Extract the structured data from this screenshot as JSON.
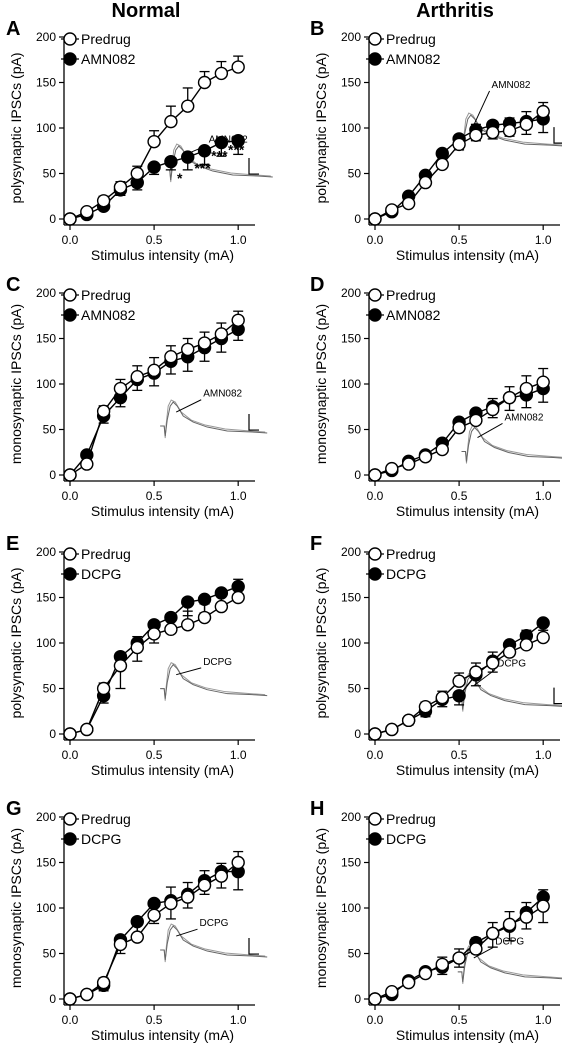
{
  "column_titles": [
    "Normal",
    "Arthritis"
  ],
  "chart_data": [
    {
      "panel": "A",
      "type": "line",
      "ylabel": "polysynaptic IPSCs (pA)",
      "xlabel": "Stimulus intensity (mA)",
      "xlim": [
        0,
        1.1
      ],
      "ylim": [
        0,
        200
      ],
      "xticks": [
        "0.0",
        "0.5",
        "1.0"
      ],
      "yticks": [
        "0",
        "50",
        "100",
        "150",
        "200"
      ],
      "x": [
        0,
        0.1,
        0.2,
        0.3,
        0.4,
        0.5,
        0.6,
        0.7,
        0.8,
        0.9,
        1.0
      ],
      "series": [
        {
          "name": "Predrug",
          "filled": false,
          "values": [
            0,
            8,
            20,
            35,
            50,
            85,
            107,
            124,
            150,
            160,
            167
          ],
          "err": [
            2,
            3,
            5,
            6,
            8,
            12,
            17,
            20,
            12,
            13,
            12
          ]
        },
        {
          "name": "AMN082",
          "filled": true,
          "values": [
            0,
            5,
            14,
            32,
            40,
            57,
            63,
            68,
            75,
            84,
            86
          ],
          "err": [
            2,
            3,
            4,
            6,
            8,
            8,
            9,
            14,
            15,
            15,
            15
          ]
        }
      ],
      "significance": [
        "*",
        "***",
        "***",
        "***"
      ],
      "annotation": "AMN082",
      "legend": "top-left"
    },
    {
      "panel": "B",
      "type": "line",
      "ylabel": "polysynaptic IPSCs (pA)",
      "xlabel": "Stimulus intensity (mA)",
      "xlim": [
        0,
        1.1
      ],
      "ylim": [
        0,
        200
      ],
      "xticks": [
        "0.0",
        "0.5",
        "1.0"
      ],
      "yticks": [
        "0",
        "50",
        "100",
        "150",
        "200"
      ],
      "x": [
        0,
        0.1,
        0.2,
        0.3,
        0.4,
        0.5,
        0.6,
        0.7,
        0.8,
        0.9,
        1.0
      ],
      "series": [
        {
          "name": "Predrug",
          "filled": false,
          "values": [
            0,
            10,
            17,
            40,
            60,
            82,
            92,
            95,
            97,
            104,
            118
          ],
          "err": [
            2,
            3,
            5,
            6,
            8,
            10,
            12,
            12,
            14,
            14,
            10
          ]
        },
        {
          "name": "AMN082",
          "filled": true,
          "values": [
            0,
            8,
            25,
            48,
            72,
            88,
            98,
            103,
            105,
            107,
            110
          ],
          "err": [
            2,
            3,
            5,
            8,
            10,
            12,
            12,
            15,
            14,
            14,
            15
          ]
        }
      ],
      "annotation": "AMN082",
      "legend": "top-left"
    },
    {
      "panel": "C",
      "type": "line",
      "ylabel": "monosynaptic IPSCs (pA)",
      "xlabel": "Stimulus intensity (mA)",
      "xlim": [
        0,
        1.1
      ],
      "ylim": [
        0,
        200
      ],
      "xticks": [
        "0.0",
        "0.5",
        "1.0"
      ],
      "yticks": [
        "0",
        "50",
        "100",
        "150",
        "200"
      ],
      "x": [
        0,
        0.1,
        0.2,
        0.3,
        0.4,
        0.5,
        0.6,
        0.7,
        0.8,
        0.9,
        1.0
      ],
      "series": [
        {
          "name": "Predrug",
          "filled": false,
          "values": [
            0,
            12,
            70,
            95,
            108,
            115,
            130,
            138,
            145,
            155,
            170
          ],
          "err": [
            2,
            3,
            6,
            10,
            12,
            14,
            12,
            12,
            12,
            12,
            10
          ]
        },
        {
          "name": "AMN082",
          "filled": true,
          "values": [
            0,
            22,
            65,
            85,
            105,
            112,
            125,
            130,
            140,
            150,
            160
          ],
          "err": [
            2,
            3,
            8,
            10,
            12,
            14,
            14,
            16,
            15,
            15,
            12
          ]
        }
      ],
      "annotation": "AMN082",
      "legend": "top-left"
    },
    {
      "panel": "D",
      "type": "line",
      "ylabel": "monosynaptic IPSCs (pA)",
      "xlabel": "Stimulus intensity (mA)",
      "xlim": [
        0,
        1.1
      ],
      "ylim": [
        0,
        200
      ],
      "xticks": [
        "0.0",
        "0.5",
        "1.0"
      ],
      "yticks": [
        "0",
        "50",
        "100",
        "150",
        "200"
      ],
      "x": [
        0,
        0.1,
        0.2,
        0.3,
        0.4,
        0.5,
        0.6,
        0.7,
        0.8,
        0.9,
        1.0
      ],
      "series": [
        {
          "name": "Predrug",
          "filled": false,
          "values": [
            0,
            7,
            12,
            20,
            28,
            52,
            60,
            72,
            85,
            95,
            102
          ],
          "err": [
            2,
            2,
            4,
            6,
            6,
            10,
            10,
            12,
            12,
            14,
            15
          ]
        },
        {
          "name": "AMN082",
          "filled": true,
          "values": [
            0,
            5,
            15,
            22,
            35,
            58,
            68,
            75,
            85,
            88,
            95
          ],
          "err": [
            2,
            3,
            5,
            6,
            8,
            10,
            12,
            12,
            14,
            14,
            15
          ]
        }
      ],
      "annotation": "AMN082",
      "legend": "top-left"
    },
    {
      "panel": "E",
      "type": "line",
      "ylabel": "polysynaptic IPSCs (pA)",
      "xlabel": "Stimulus intensity (mA)",
      "xlim": [
        0,
        1.1
      ],
      "ylim": [
        0,
        200
      ],
      "xticks": [
        "0.0",
        "0.5",
        "1.0"
      ],
      "yticks": [
        "0",
        "50",
        "100",
        "150",
        "200"
      ],
      "x": [
        0,
        0.1,
        0.2,
        0.3,
        0.4,
        0.5,
        0.6,
        0.7,
        0.8,
        0.9,
        1.0
      ],
      "series": [
        {
          "name": "Predrug",
          "filled": false,
          "values": [
            0,
            5,
            50,
            75,
            95,
            110,
            115,
            120,
            128,
            140,
            150
          ],
          "err": [
            2,
            3,
            6,
            10,
            12,
            14,
            10,
            15,
            15,
            18,
            20
          ]
        },
        {
          "name": "DCPG",
          "filled": true,
          "values": [
            0,
            5,
            42,
            85,
            100,
            120,
            128,
            145,
            148,
            155,
            162
          ],
          "err": [
            2,
            3,
            8,
            35,
            20,
            20,
            15,
            15,
            15,
            12,
            10
          ]
        }
      ],
      "annotation": "DCPG",
      "legend": "top-left"
    },
    {
      "panel": "F",
      "type": "line",
      "ylabel": "polysynaptic IPSCs (pA)",
      "xlabel": "Stimulus intensity (mA)",
      "xlim": [
        0,
        1.1
      ],
      "ylim": [
        0,
        200
      ],
      "xticks": [
        "0.0",
        "0.5",
        "1.0"
      ],
      "yticks": [
        "0",
        "50",
        "100",
        "150",
        "200"
      ],
      "x": [
        0,
        0.1,
        0.2,
        0.3,
        0.4,
        0.5,
        0.6,
        0.7,
        0.8,
        0.9,
        1.0
      ],
      "series": [
        {
          "name": "Predrug",
          "filled": false,
          "values": [
            0,
            5,
            15,
            30,
            40,
            58,
            68,
            78,
            90,
            98,
            106
          ],
          "err": [
            2,
            2,
            4,
            5,
            7,
            9,
            10,
            12,
            12,
            16,
            15
          ]
        },
        {
          "name": "DCPG",
          "filled": true,
          "values": [
            0,
            5,
            15,
            25,
            38,
            42,
            65,
            80,
            98,
            108,
            122
          ],
          "err": [
            2,
            3,
            5,
            6,
            8,
            10,
            12,
            12,
            12,
            12,
            8
          ]
        }
      ],
      "annotation": "DCPG",
      "legend": "top-left"
    },
    {
      "panel": "G",
      "type": "line",
      "ylabel": "monosynaptic IPSCs (pA)",
      "xlabel": "Stimulus intensity (mA)",
      "xlim": [
        0,
        1.1
      ],
      "ylim": [
        0,
        200
      ],
      "xticks": [
        "0.0",
        "0.5",
        "1.0"
      ],
      "yticks": [
        "0",
        "50",
        "100",
        "150",
        "200"
      ],
      "x": [
        0,
        0.1,
        0.2,
        0.3,
        0.4,
        0.5,
        0.6,
        0.7,
        0.8,
        0.9,
        1.0
      ],
      "series": [
        {
          "name": "Predrug",
          "filled": false,
          "values": [
            0,
            5,
            18,
            60,
            68,
            92,
            105,
            112,
            125,
            135,
            150
          ],
          "err": [
            2,
            3,
            5,
            10,
            15,
            16,
            18,
            16,
            16,
            14,
            12
          ]
        },
        {
          "name": "DCPG",
          "filled": true,
          "values": [
            0,
            5,
            15,
            65,
            85,
            105,
            108,
            115,
            130,
            140,
            140
          ],
          "err": [
            2,
            3,
            6,
            15,
            20,
            22,
            20,
            15,
            15,
            18,
            20
          ]
        }
      ],
      "annotation": "DCPG",
      "legend": "top-left"
    },
    {
      "panel": "H",
      "type": "line",
      "ylabel": "monosynaptic IPSCs (pA)",
      "xlabel": "Stimulus intensity (mA)",
      "xlim": [
        0,
        1.1
      ],
      "ylim": [
        0,
        200
      ],
      "xticks": [
        "0.0",
        "0.5",
        "1.0"
      ],
      "yticks": [
        "0",
        "50",
        "100",
        "150",
        "200"
      ],
      "x": [
        0,
        0.1,
        0.2,
        0.3,
        0.4,
        0.5,
        0.6,
        0.7,
        0.8,
        0.9,
        1.0
      ],
      "series": [
        {
          "name": "Predrug",
          "filled": false,
          "values": [
            0,
            8,
            18,
            28,
            38,
            45,
            55,
            72,
            82,
            90,
            102
          ],
          "err": [
            2,
            3,
            5,
            6,
            8,
            10,
            12,
            12,
            14,
            16,
            18
          ]
        },
        {
          "name": "DCPG",
          "filled": true,
          "values": [
            0,
            5,
            20,
            30,
            35,
            45,
            62,
            72,
            80,
            95,
            112
          ],
          "err": [
            2,
            3,
            5,
            6,
            8,
            10,
            12,
            15,
            16,
            18,
            28
          ]
        }
      ],
      "annotation": "DCPG",
      "legend": "top-left"
    }
  ]
}
